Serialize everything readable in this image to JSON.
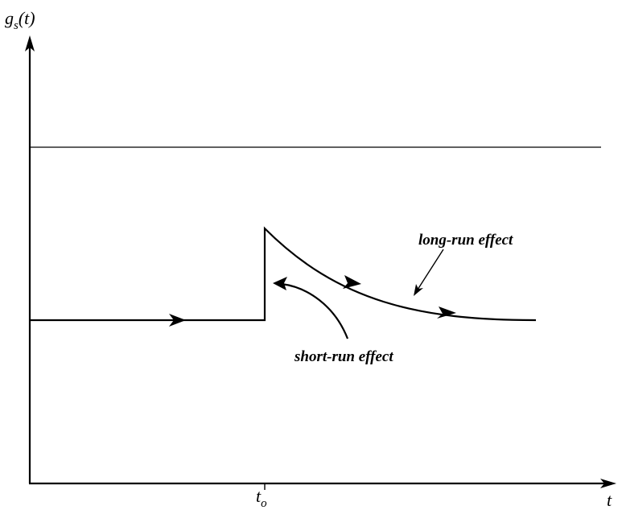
{
  "diagram": {
    "y_axis_label": {
      "main": "g",
      "subscript": "s",
      "suffix": "(t)"
    },
    "x_axis_label": "t",
    "time_marker": {
      "main": "t",
      "subscript": "o"
    },
    "annotations": {
      "long_run": "long-run effect",
      "short_run": "short-run effect"
    },
    "colors": {
      "ink": "#000000",
      "background": "#ffffff"
    }
  }
}
